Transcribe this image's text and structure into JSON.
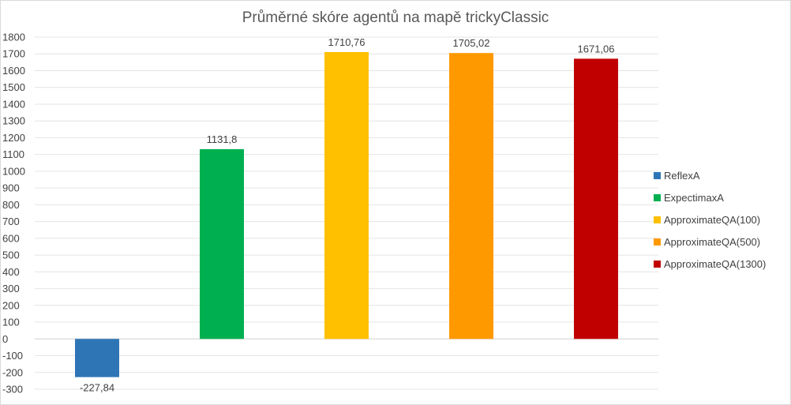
{
  "chart_data": {
    "type": "bar",
    "title": "Průměrné skóre agentů na mapě trickyClassic",
    "xlabel": "",
    "ylabel": "",
    "ylim": [
      -300,
      1800
    ],
    "ytick_step": 100,
    "yticks": [
      "-300",
      "-200",
      "-100",
      "0",
      "100",
      "200",
      "300",
      "400",
      "500",
      "600",
      "700",
      "800",
      "900",
      "1000",
      "1100",
      "1200",
      "1300",
      "1400",
      "1500",
      "1600",
      "1700",
      "1800"
    ],
    "grid": true,
    "legend_position": "right",
    "series": [
      {
        "name": "ReflexA",
        "value": -227.84,
        "label": "-227,84",
        "color": "#2e75b6"
      },
      {
        "name": "ExpectimaxA",
        "value": 1131.8,
        "label": "1131,8",
        "color": "#00b050"
      },
      {
        "name": "ApproximateQA(100)",
        "value": 1710.76,
        "label": "1710,76",
        "color": "#ffc000"
      },
      {
        "name": "ApproximateQA(500)",
        "value": 1705.02,
        "label": "1705,02",
        "color": "#ff9900"
      },
      {
        "name": "ApproximateQA(1300)",
        "value": 1671.06,
        "label": "1671,06",
        "color": "#c00000"
      }
    ]
  }
}
